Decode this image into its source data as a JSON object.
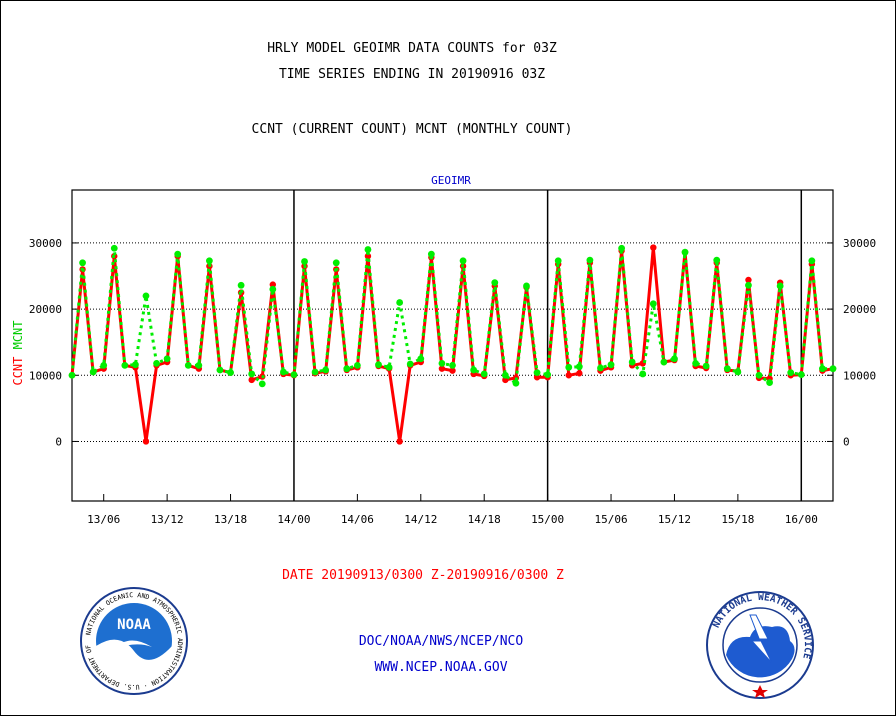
{
  "header": {
    "title_line1": "HRLY MODEL GEOIMR DATA COUNTS for 03Z",
    "title_line2": "TIME SERIES ENDING IN 20190916 03Z",
    "subtitle": "CCNT (CURRENT COUNT) MCNT (MONTHLY COUNT)"
  },
  "footer": {
    "date_range": "DATE 20190913/0300 Z-20190916/0300 Z",
    "org_line": "DOC/NOAA/NWS/NCEP/NCO",
    "url_line": "WWW.NCEP.NOAA.GOV"
  },
  "logos": {
    "noaa": {
      "icon": "noaa-logo",
      "text": "NOAA",
      "ring_text": "NATIONAL OCEANIC AND ATMOSPHERIC ADMINISTRATION · U.S. DEPARTMENT OF COMMERCE"
    },
    "nws": {
      "icon": "nws-logo",
      "ring_text": "NATIONAL WEATHER SERVICE"
    }
  },
  "colors": {
    "ccnt": "#ff0000",
    "mcnt": "#00ee00",
    "title": "#000000",
    "date": "#ff0000",
    "footer": "#0000cc",
    "panel_label": "#0000cc"
  },
  "chart_data": {
    "type": "line",
    "title": "GEOIMR",
    "ylabel_ccnt": "CCNT",
    "ylabel_mcnt": "MCNT",
    "ylim": [
      -9000,
      38000
    ],
    "yticks": [
      0,
      10000,
      20000,
      30000
    ],
    "ytick_labels": [
      "0",
      "10000",
      "20000",
      "30000"
    ],
    "grid": "horizontal dotted",
    "x_range_hours": [
      0,
      72
    ],
    "xtick_hours": [
      3,
      9,
      15,
      21,
      27,
      33,
      39,
      45,
      51,
      57,
      63,
      69
    ],
    "xtick_labels": [
      "13/06",
      "13/12",
      "13/18",
      "14/00",
      "14/06",
      "14/12",
      "14/18",
      "15/00",
      "15/06",
      "15/12",
      "15/18",
      "16/00"
    ],
    "day_boundaries_hours": [
      21,
      45,
      69
    ],
    "x_hours": [
      0,
      1,
      2,
      3,
      4,
      5,
      6,
      7,
      8,
      9,
      10,
      11,
      12,
      13,
      14,
      15,
      16,
      17,
      18,
      19,
      20,
      21,
      22,
      23,
      24,
      25,
      26,
      27,
      28,
      29,
      30,
      31,
      32,
      33,
      34,
      35,
      36,
      37,
      38,
      39,
      40,
      41,
      42,
      43,
      44,
      45,
      46,
      47,
      48,
      49,
      50,
      51,
      52,
      53,
      54,
      55,
      56,
      57,
      58,
      59,
      60,
      61,
      62,
      63,
      64,
      65,
      66,
      67,
      68,
      69,
      70,
      71,
      72
    ],
    "series": [
      {
        "name": "CCNT",
        "color": "#ff0000",
        "values": [
          10000,
          26000,
          10500,
          11000,
          28000,
          11500,
          11200,
          0,
          11500,
          12000,
          28000,
          11500,
          11000,
          26500,
          10800,
          10400,
          22500,
          9300,
          9800,
          23700,
          10200,
          10000,
          26500,
          10300,
          10600,
          26000,
          10800,
          11200,
          28000,
          11400,
          11000,
          0,
          11500,
          12000,
          27800,
          11000,
          10700,
          26500,
          10200,
          9900,
          23500,
          9300,
          9600,
          23300,
          9700,
          9700,
          26800,
          10000,
          10300,
          27000,
          10700,
          11200,
          28800,
          11500,
          11800,
          29300,
          12000,
          12300,
          28600,
          11400,
          11100,
          27000,
          10800,
          10600,
          24400,
          9600,
          9500,
          24000,
          10000,
          10100,
          26800,
          10700,
          11000
        ]
      },
      {
        "name": "MCNT",
        "color": "#00ee00",
        "values": [
          10000,
          27000,
          10500,
          11500,
          29200,
          11500,
          11600,
          22000,
          11800,
          12500,
          28300,
          11500,
          11500,
          27300,
          10800,
          10400,
          23600,
          10200,
          8700,
          23000,
          10500,
          10100,
          27200,
          10500,
          10800,
          27000,
          11000,
          11500,
          29000,
          11600,
          11200,
          21000,
          11700,
          12500,
          28300,
          11800,
          11500,
          27300,
          10800,
          10200,
          24000,
          10000,
          8800,
          23500,
          10400,
          10100,
          27300,
          11200,
          11300,
          27400,
          11100,
          11600,
          29200,
          12000,
          10200,
          20800,
          12000,
          12500,
          28600,
          11800,
          11400,
          27400,
          11000,
          10500,
          23600,
          10000,
          8900,
          23500,
          10400,
          10100,
          27300,
          11000,
          11000
        ]
      }
    ]
  }
}
